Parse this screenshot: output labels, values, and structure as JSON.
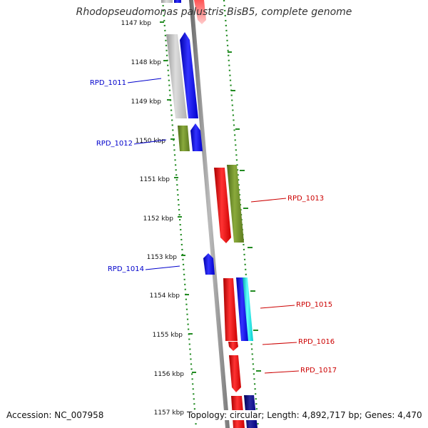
{
  "title": "Rhodopseudomonas palustris BisB5, complete genome",
  "accession": "Accession: NC_007958",
  "topology": "Topology: circular; Length: 4,892,717 bp; Genes: 4,470",
  "ticks": [
    "1147 kbp",
    "1148 kbp",
    "1149 kbp",
    "1150 kbp",
    "1151 kbp",
    "1152 kbp",
    "1153 kbp",
    "1154 kbp",
    "1155 kbp",
    "1156 kbp",
    "1157 kbp"
  ],
  "genes": [
    {
      "label": "RPD_1011",
      "color": "#0000cc",
      "strand": "forward"
    },
    {
      "label": "RPD_1012",
      "color": "#0000cc",
      "strand": "forward"
    },
    {
      "label": "RPD_1013",
      "color": "#cc0000",
      "strand": "reverse"
    },
    {
      "label": "RPD_1014",
      "color": "#0000cc",
      "strand": "forward"
    },
    {
      "label": "RPD_1015",
      "color": "#cc0000",
      "strand": "reverse"
    },
    {
      "label": "RPD_1016",
      "color": "#cc0000",
      "strand": "reverse"
    },
    {
      "label": "RPD_1017",
      "color": "#cc0000",
      "strand": "reverse"
    }
  ],
  "colors": {
    "forward": "#0000ff",
    "reverse": "#ff0000",
    "cds_feature": "#6b8e23",
    "gene_feature": "#bbbbbb",
    "rna_feature": "#00ffff",
    "navy_feature": "#000080",
    "backbone": "#888888",
    "tick_dots": "#228b22"
  }
}
